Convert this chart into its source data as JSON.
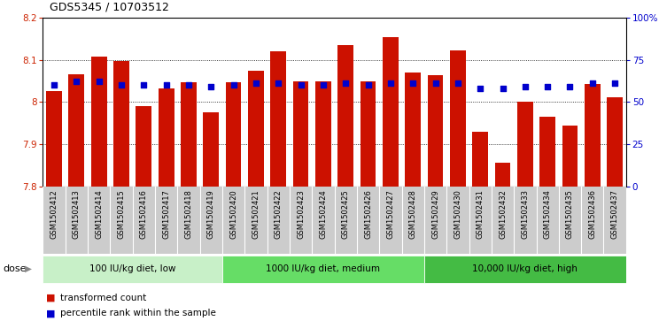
{
  "title": "GDS5345 / 10703512",
  "samples": [
    "GSM1502412",
    "GSM1502413",
    "GSM1502414",
    "GSM1502415",
    "GSM1502416",
    "GSM1502417",
    "GSM1502418",
    "GSM1502419",
    "GSM1502420",
    "GSM1502421",
    "GSM1502422",
    "GSM1502423",
    "GSM1502424",
    "GSM1502425",
    "GSM1502426",
    "GSM1502427",
    "GSM1502428",
    "GSM1502429",
    "GSM1502430",
    "GSM1502431",
    "GSM1502432",
    "GSM1502433",
    "GSM1502434",
    "GSM1502435",
    "GSM1502436",
    "GSM1502437"
  ],
  "bar_values": [
    8.025,
    8.065,
    8.108,
    8.098,
    7.99,
    8.033,
    8.047,
    7.975,
    8.047,
    8.073,
    8.12,
    8.048,
    8.048,
    8.135,
    8.048,
    8.153,
    8.07,
    8.063,
    8.123,
    7.93,
    7.855,
    8.0,
    7.965,
    7.943,
    8.043,
    8.01
  ],
  "percentile_values": [
    60,
    62,
    62,
    60,
    60,
    60,
    60,
    59,
    60,
    61,
    61,
    60,
    60,
    61,
    60,
    61,
    61,
    61,
    61,
    58,
    58,
    59,
    59,
    59,
    61,
    61
  ],
  "groups": [
    {
      "label": "100 IU/kg diet, low",
      "start": 0,
      "end": 8,
      "color": "#C8F0C8"
    },
    {
      "label": "1000 IU/kg diet, medium",
      "start": 8,
      "end": 17,
      "color": "#66DD66"
    },
    {
      "label": "10,000 IU/kg diet, high",
      "start": 17,
      "end": 26,
      "color": "#44BB44"
    }
  ],
  "ymin": 7.8,
  "ymax": 8.2,
  "bar_color": "#CC1100",
  "dot_color": "#0000CC",
  "bg_color": "#FFFFFF",
  "xtick_bg": "#CCCCCC",
  "yticks_left": [
    7.8,
    7.9,
    8.0,
    8.1,
    8.2
  ],
  "ytick_left_labels": [
    "7.8",
    "7.9",
    "8",
    "8.1",
    "8.2"
  ],
  "yticks_right_vals": [
    0,
    25,
    50,
    75,
    100
  ],
  "yticks_right_labels": [
    "0",
    "25",
    "50",
    "75",
    "100%"
  ],
  "dose_label": "dose",
  "legend_items": [
    {
      "color": "#CC1100",
      "label": "transformed count"
    },
    {
      "color": "#0000CC",
      "label": "percentile rank within the sample"
    }
  ]
}
